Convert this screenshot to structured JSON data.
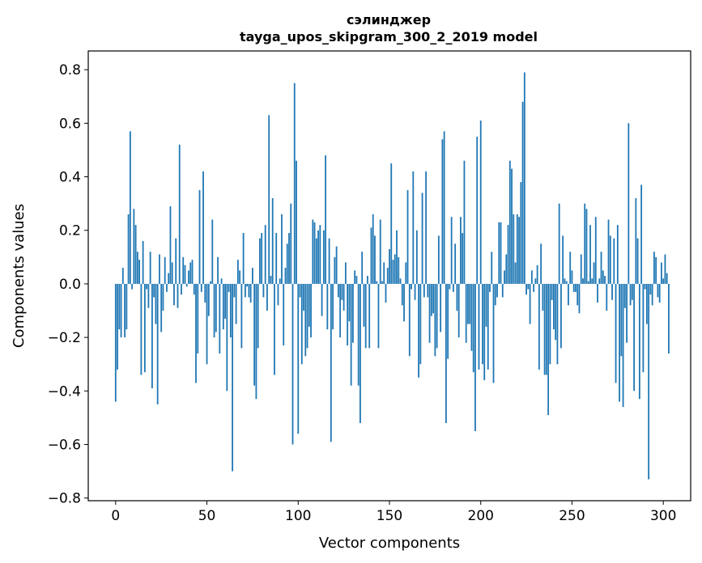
{
  "chart_data": {
    "type": "bar",
    "title": "сэлинджер",
    "subtitle": "tayga_upos_skipgram_300_2_2019 model",
    "xlabel": "Vector components",
    "ylabel": "Components values",
    "xlim": [
      -15,
      315
    ],
    "ylim": [
      -0.81,
      0.87
    ],
    "xticks": [
      0,
      50,
      100,
      150,
      200,
      250,
      300
    ],
    "xtick_labels": [
      "0",
      "50",
      "100",
      "150",
      "200",
      "250",
      "300"
    ],
    "yticks": [
      -0.8,
      -0.6,
      -0.4,
      -0.2,
      0.0,
      0.2,
      0.4,
      0.6,
      0.8
    ],
    "ytick_labels": [
      "−0.8",
      "−0.6",
      "−0.4",
      "−0.2",
      "0.0",
      "0.2",
      "0.4",
      "0.6",
      "0.8"
    ],
    "bar_color": "#1f77b4",
    "grid": false,
    "values": [
      -0.44,
      -0.32,
      -0.17,
      -0.2,
      0.06,
      -0.2,
      -0.17,
      0.26,
      0.57,
      -0.02,
      0.28,
      0.22,
      0.12,
      0.09,
      -0.34,
      0.16,
      -0.33,
      -0.02,
      -0.09,
      0.12,
      -0.39,
      -0.05,
      -0.15,
      -0.45,
      0.11,
      -0.18,
      -0.1,
      0.1,
      -0.03,
      0.04,
      0.29,
      0.08,
      -0.08,
      0.17,
      -0.09,
      0.52,
      -0.04,
      0.1,
      0.07,
      -0.01,
      0.05,
      0.08,
      0.09,
      -0.04,
      -0.37,
      -0.26,
      0.35,
      -0.03,
      0.42,
      -0.07,
      -0.3,
      -0.12,
      0.01,
      0.24,
      -0.2,
      -0.18,
      0.1,
      -0.26,
      0.02,
      -0.17,
      -0.13,
      -0.4,
      -0.03,
      -0.2,
      -0.7,
      -0.05,
      -0.15,
      0.09,
      0.05,
      -0.24,
      0.19,
      -0.05,
      -0.01,
      -0.05,
      -0.07,
      0.06,
      -0.38,
      -0.43,
      -0.24,
      0.17,
      0.19,
      -0.05,
      0.22,
      -0.1,
      0.63,
      0.03,
      0.32,
      -0.34,
      0.19,
      -0.08,
      0.02,
      0.26,
      -0.23,
      0.06,
      0.15,
      0.19,
      0.3,
      -0.6,
      0.75,
      0.46,
      -0.56,
      -0.05,
      -0.3,
      -0.1,
      -0.27,
      -0.24,
      -0.16,
      -0.2,
      0.24,
      0.23,
      0.17,
      0.2,
      0.22,
      -0.12,
      0.2,
      0.48,
      -0.17,
      0.17,
      -0.59,
      -0.17,
      0.1,
      0.14,
      -0.05,
      -0.2,
      -0.06,
      -0.1,
      0.08,
      -0.23,
      -0.14,
      -0.38,
      -0.22,
      0.05,
      0.03,
      -0.38,
      -0.52,
      0.12,
      -0.16,
      -0.24,
      0.03,
      -0.24,
      0.21,
      0.26,
      0.18,
      0.01,
      -0.24,
      0.24,
      0.01,
      0.08,
      -0.07,
      0.06,
      0.13,
      0.45,
      0.09,
      0.11,
      0.2,
      0.1,
      0.02,
      -0.08,
      -0.14,
      0.08,
      0.35,
      -0.27,
      -0.02,
      0.42,
      -0.06,
      0.2,
      -0.35,
      -0.3,
      0.34,
      -0.05,
      0.42,
      -0.05,
      -0.22,
      -0.12,
      -0.11,
      -0.27,
      -0.24,
      0.18,
      -0.18,
      0.54,
      0.57,
      -0.52,
      -0.28,
      -0.02,
      0.25,
      -0.03,
      0.15,
      -0.1,
      -0.2,
      0.25,
      0.19,
      0.46,
      -0.22,
      -0.15,
      -0.15,
      -0.25,
      -0.33,
      -0.55,
      0.55,
      -0.32,
      0.61,
      -0.3,
      -0.36,
      -0.16,
      -0.32,
      -0.03,
      0.12,
      -0.37,
      -0.08,
      -0.05,
      0.23,
      0.23,
      -0.05,
      0.05,
      0.11,
      0.22,
      0.46,
      0.43,
      0.26,
      0.08,
      0.26,
      0.25,
      0.38,
      0.68,
      0.79,
      -0.04,
      -0.02,
      -0.15,
      0.05,
      -0.03,
      0.02,
      0.07,
      -0.32,
      0.15,
      -0.1,
      -0.34,
      -0.34,
      -0.49,
      -0.3,
      -0.06,
      -0.17,
      -0.21,
      -0.3,
      0.3,
      -0.24,
      0.18,
      0.02,
      0.01,
      -0.08,
      0.12,
      0.05,
      -0.03,
      -0.03,
      -0.08,
      -0.11,
      0.11,
      0.02,
      0.3,
      0.28,
      0.01,
      0.22,
      0.02,
      0.08,
      0.25,
      -0.07,
      0.02,
      0.12,
      0.05,
      0.03,
      -0.1,
      0.24,
      0.18,
      -0.06,
      0.17,
      -0.37,
      0.22,
      -0.44,
      -0.27,
      -0.46,
      -0.09,
      -0.22,
      0.6,
      -0.08,
      -0.06,
      -0.4,
      0.32,
      0.17,
      -0.43,
      0.37,
      -0.33,
      -0.02,
      -0.15,
      -0.73,
      -0.04,
      -0.08,
      0.12,
      0.1,
      -0.05,
      -0.07,
      0.08,
      0.02,
      0.11,
      0.04,
      -0.26
    ]
  }
}
